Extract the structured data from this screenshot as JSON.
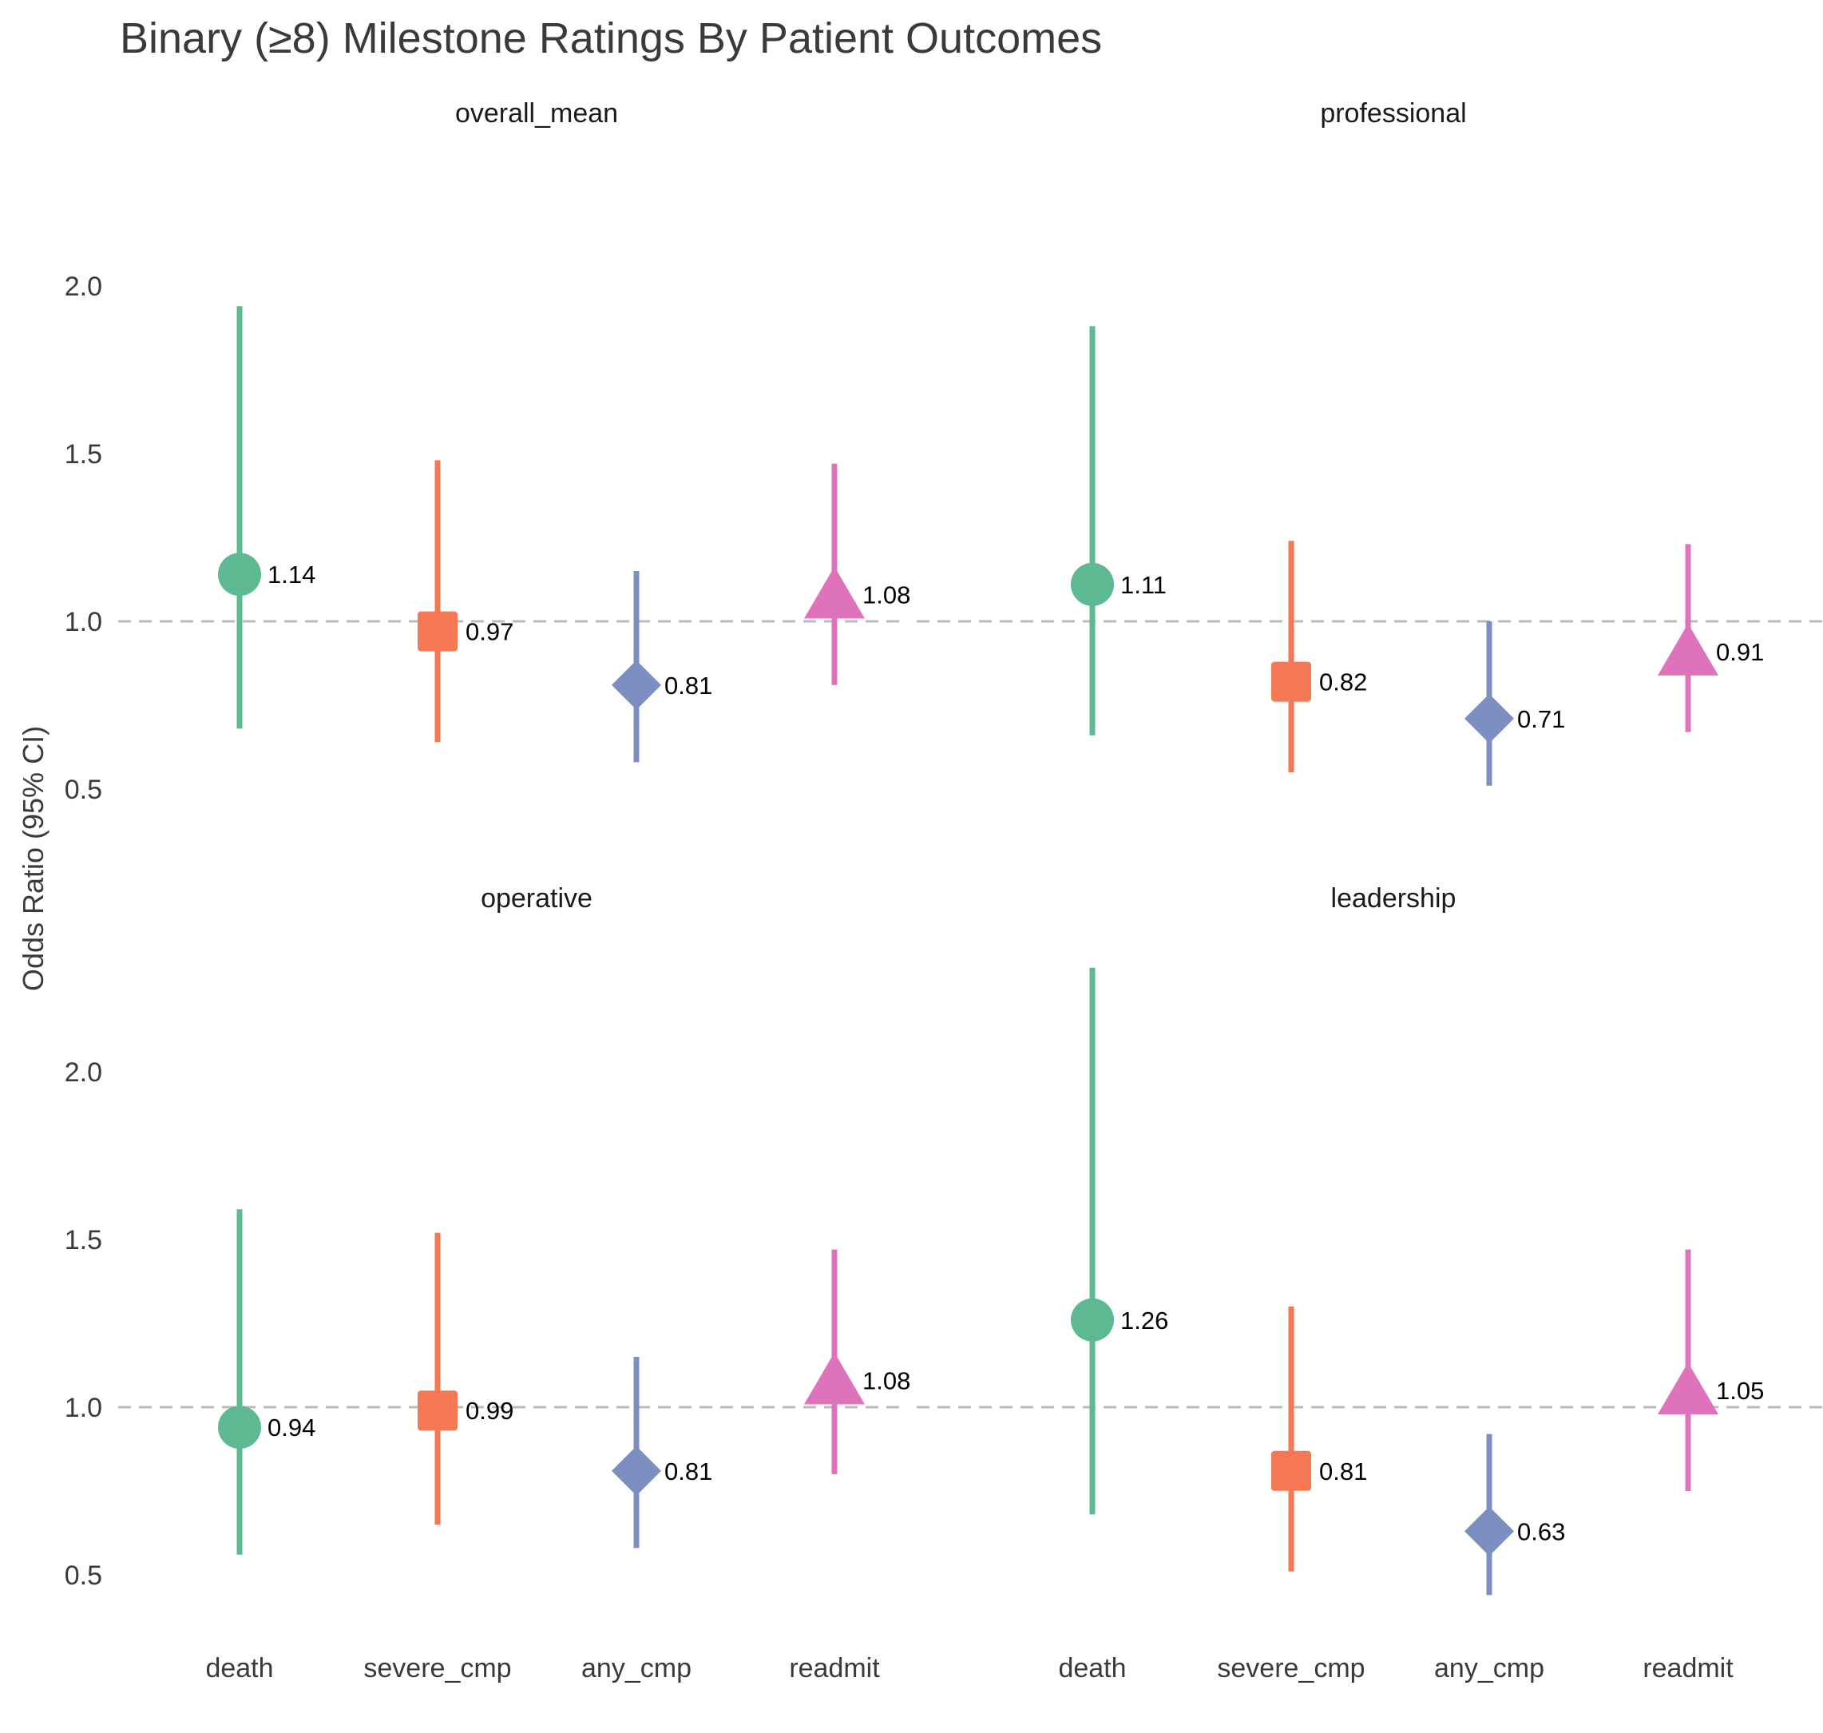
{
  "chart_data": {
    "type": "scatter",
    "title": "Binary (≥8) Milestone Ratings By Patient Outcomes",
    "ylabel": "Odds Ratio (95% CI)",
    "xlabel": "",
    "ylim": [
      0.33,
      2.3
    ],
    "yticks": [
      0.5,
      1.0,
      1.5,
      2.0
    ],
    "ytick_labels": [
      "0.5",
      "1.0",
      "1.5",
      "2.0"
    ],
    "reference_line": 1.0,
    "categories": [
      "death",
      "severe_cmp",
      "any_cmp",
      "readmit"
    ],
    "colors": {
      "death": "#5cb992",
      "severe_cmp": "#f37853",
      "any_cmp": "#7b8fc1",
      "readmit": "#de72bb",
      "reference": "#bbbbbb"
    },
    "markers": {
      "death": "circle",
      "severe_cmp": "square",
      "any_cmp": "diamond",
      "readmit": "triangle"
    },
    "panels": [
      {
        "title": "overall_mean",
        "points": [
          {
            "category": "death",
            "or": 1.14,
            "lo": 0.68,
            "hi": 1.94,
            "label": "1.14"
          },
          {
            "category": "severe_cmp",
            "or": 0.97,
            "lo": 0.64,
            "hi": 1.48,
            "label": "0.97"
          },
          {
            "category": "any_cmp",
            "or": 0.81,
            "lo": 0.58,
            "hi": 1.15,
            "label": "0.81"
          },
          {
            "category": "readmit",
            "or": 1.08,
            "lo": 0.81,
            "hi": 1.47,
            "label": "1.08"
          }
        ]
      },
      {
        "title": "professional",
        "points": [
          {
            "category": "death",
            "or": 1.11,
            "lo": 0.66,
            "hi": 1.88,
            "label": "1.11"
          },
          {
            "category": "severe_cmp",
            "or": 0.82,
            "lo": 0.55,
            "hi": 1.24,
            "label": "0.82"
          },
          {
            "category": "any_cmp",
            "or": 0.71,
            "lo": 0.51,
            "hi": 1.0,
            "label": "0.71"
          },
          {
            "category": "readmit",
            "or": 0.91,
            "lo": 0.67,
            "hi": 1.23,
            "label": "0.91"
          }
        ]
      },
      {
        "title": "operative",
        "points": [
          {
            "category": "death",
            "or": 0.94,
            "lo": 0.56,
            "hi": 1.59,
            "label": "0.94"
          },
          {
            "category": "severe_cmp",
            "or": 0.99,
            "lo": 0.65,
            "hi": 1.52,
            "label": "0.99"
          },
          {
            "category": "any_cmp",
            "or": 0.81,
            "lo": 0.58,
            "hi": 1.15,
            "label": "0.81"
          },
          {
            "category": "readmit",
            "or": 1.08,
            "lo": 0.8,
            "hi": 1.47,
            "label": "1.08"
          }
        ]
      },
      {
        "title": "leadership",
        "points": [
          {
            "category": "death",
            "or": 1.26,
            "lo": 0.68,
            "hi": 2.31,
            "label": "1.26"
          },
          {
            "category": "severe_cmp",
            "or": 0.81,
            "lo": 0.51,
            "hi": 1.3,
            "label": "0.81"
          },
          {
            "category": "any_cmp",
            "or": 0.63,
            "lo": 0.44,
            "hi": 0.92,
            "label": "0.63"
          },
          {
            "category": "readmit",
            "or": 1.05,
            "lo": 0.75,
            "hi": 1.47,
            "label": "1.05"
          }
        ]
      }
    ]
  }
}
